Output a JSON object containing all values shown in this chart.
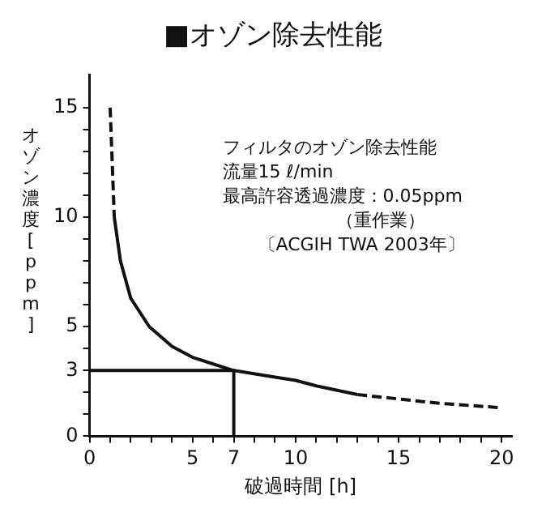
{
  "chart_data": {
    "type": "line",
    "title": "■オゾン除去性能",
    "xlabel": "破過時間 [h]",
    "ylabel": "オゾン濃度[ppm]",
    "xlim": [
      0,
      20.5
    ],
    "ylim": [
      0,
      16.5
    ],
    "xticks": [
      0,
      {
        "value": 1,
        "label": null
      },
      {
        "value": 2,
        "label": null
      },
      {
        "value": 3,
        "label": null
      },
      {
        "value": 4,
        "label": null
      },
      5,
      {
        "value": 6,
        "label": null
      },
      7,
      {
        "value": 8,
        "label": null
      },
      {
        "value": 9,
        "label": null
      },
      10,
      {
        "value": 11,
        "label": null
      },
      {
        "value": 12,
        "label": null
      },
      {
        "value": 13,
        "label": null
      },
      {
        "value": 14,
        "label": null
      },
      15,
      {
        "value": 16,
        "label": null
      },
      {
        "value": 17,
        "label": null
      },
      {
        "value": 18,
        "label": null
      },
      {
        "value": 19,
        "label": null
      },
      20
    ],
    "yticks": [
      0,
      {
        "value": 1,
        "label": null
      },
      {
        "value": 2,
        "label": null
      },
      3,
      {
        "value": 4,
        "label": null
      },
      5,
      {
        "value": 6,
        "label": null
      },
      {
        "value": 7,
        "label": null
      },
      {
        "value": 8,
        "label": null
      },
      {
        "value": 9,
        "label": null
      },
      10,
      {
        "value": 11,
        "label": null
      },
      {
        "value": 12,
        "label": null
      },
      {
        "value": 13,
        "label": null
      },
      {
        "value": 14,
        "label": null
      },
      15
    ],
    "grid": false,
    "legend": false,
    "marker": "none",
    "series": [
      {
        "color": "#111111",
        "line_style": "dashed",
        "x": [
          1.0,
          1.2
        ],
        "values": [
          15,
          10
        ]
      },
      {
        "color": "#111111",
        "line_style": "solid",
        "x": [
          1.2,
          1.5,
          2,
          2.9,
          4,
          5,
          7,
          9,
          10,
          11,
          13
        ],
        "values": [
          10,
          8,
          6.3,
          5,
          4.1,
          3.6,
          3,
          2.7,
          2.55,
          2.3,
          1.9
        ]
      },
      {
        "color": "#111111",
        "line_style": "dashed",
        "x": [
          13,
          15,
          17,
          20
        ],
        "values": [
          1.9,
          1.7,
          1.5,
          1.3
        ]
      },
      {
        "color": "#111111",
        "line_style": "solid",
        "x": [
          0,
          7,
          7
        ],
        "values": [
          3,
          3,
          0
        ]
      }
    ],
    "annotations": [
      "フィルタのオゾン除去性能",
      "流量15 ℓ/min",
      "最高許容透過濃度：0.05ppm",
      "（重作業）",
      "〔ACGIH TWA 2003年〕"
    ]
  }
}
